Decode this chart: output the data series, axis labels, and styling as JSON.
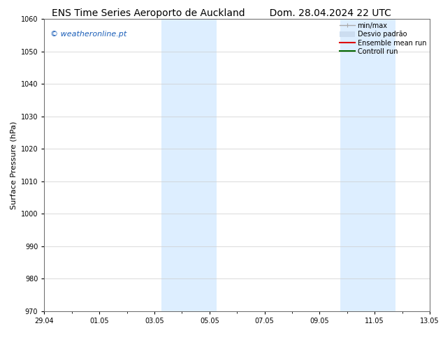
{
  "title_left": "ENS Time Series Aeroporto de Auckland",
  "title_right": "Dom. 28.04.2024 22 UTC",
  "ylabel": "Surface Pressure (hPa)",
  "ylim": [
    970,
    1060
  ],
  "yticks": [
    970,
    980,
    990,
    1000,
    1010,
    1020,
    1030,
    1040,
    1050,
    1060
  ],
  "xtick_labels": [
    "29.04",
    "01.05",
    "03.05",
    "05.05",
    "07.05",
    "09.05",
    "11.05",
    "13.05"
  ],
  "xtick_positions": [
    0,
    2,
    4,
    6,
    8,
    10,
    12,
    14
  ],
  "xlim": [
    0,
    14
  ],
  "shaded_regions": [
    {
      "x_start": 4.25,
      "x_end": 6.25
    },
    {
      "x_start": 10.75,
      "x_end": 12.75
    }
  ],
  "shaded_color": "#ddeeff",
  "watermark_text": "© weatheronline.pt",
  "watermark_color": "#1a5eb8",
  "legend_entries": [
    {
      "label": "min/max",
      "color": "#aaaaaa",
      "lw": 1.0
    },
    {
      "label": "Desvio padrão",
      "color": "#ccddf0",
      "lw": 8
    },
    {
      "label": "Ensemble mean run",
      "color": "#dd0000",
      "lw": 1.5
    },
    {
      "label": "Controll run",
      "color": "#006600",
      "lw": 1.5
    }
  ],
  "bg_color": "#ffffff",
  "grid_color": "#cccccc",
  "title_fontsize": 10,
  "watermark_fontsize": 8,
  "tick_fontsize": 7,
  "ylabel_fontsize": 8,
  "legend_fontsize": 7
}
